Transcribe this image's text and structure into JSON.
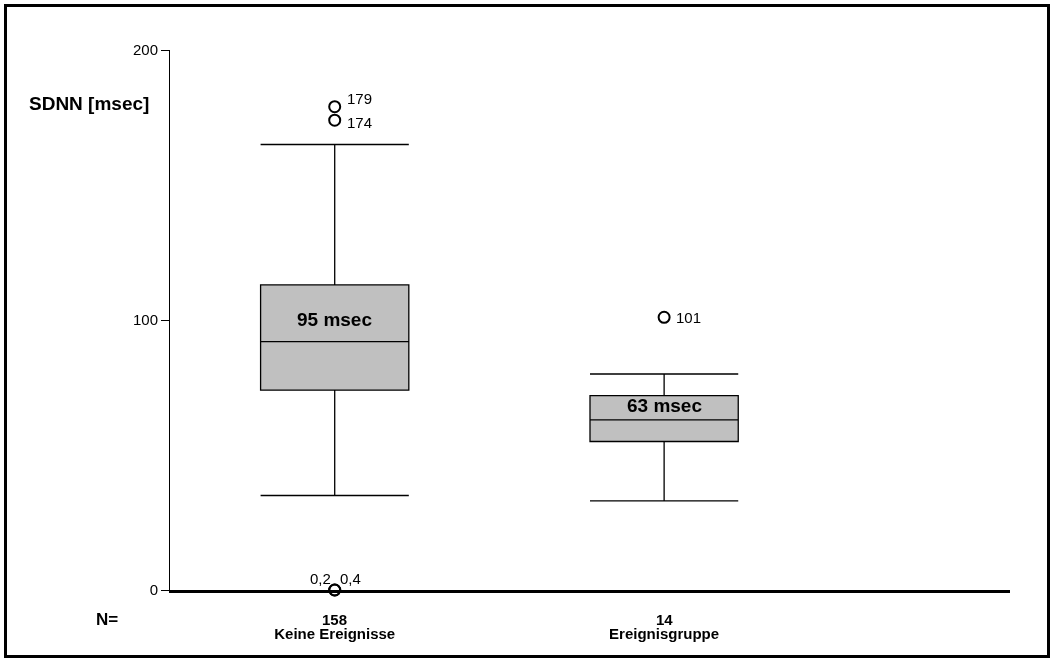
{
  "chart_data": {
    "type": "box",
    "ylabel": "SDNN [msec]",
    "categories": [
      "Keine Ereignisse",
      "Ereignisgruppe"
    ],
    "boxes": [
      {
        "low": 35,
        "q1": 74,
        "median": 92,
        "q3": 113,
        "high": 165,
        "outliers": [
          179,
          174,
          0,
          0
        ]
      },
      {
        "low": 33,
        "q1": 55,
        "median": 63,
        "q3": 72,
        "high": 80,
        "outliers": [
          101
        ]
      }
    ],
    "color": "#c0c0c0",
    "ylim": [
      0,
      200
    ],
    "yticks": [
      0,
      100,
      200
    ],
    "grid": false,
    "marker": "circle",
    "annotations": [
      "N=",
      "158",
      "14",
      "95 msec",
      "63 msec",
      "179",
      "174",
      "0,2",
      "0,4",
      "101"
    ]
  }
}
